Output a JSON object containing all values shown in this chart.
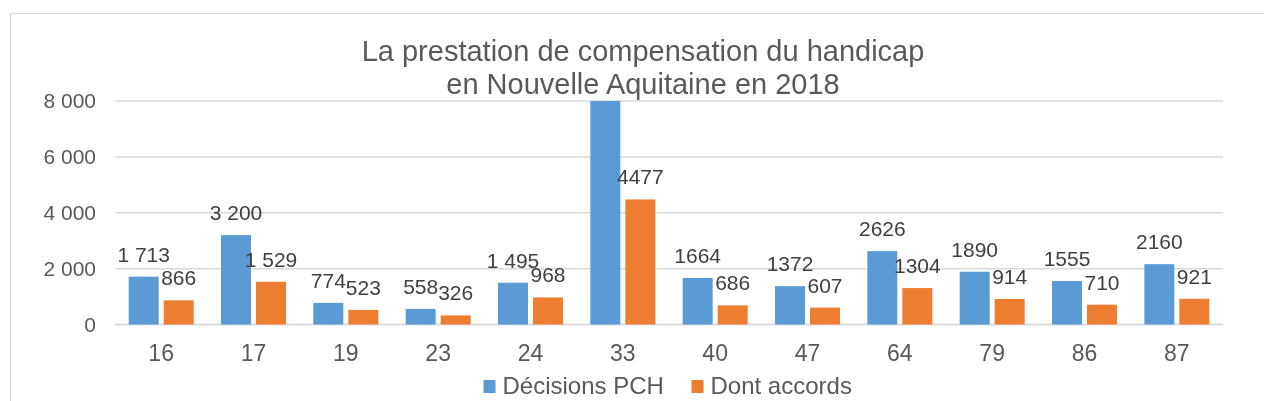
{
  "chart_data": {
    "type": "bar",
    "title": "La prestation de compensation du handicap\nen Nouvelle Aquitaine en 2018",
    "categories": [
      "16",
      "17",
      "19",
      "23",
      "24",
      "33",
      "40",
      "47",
      "64",
      "79",
      "86",
      "87"
    ],
    "series": [
      {
        "name": "Décisions PCH",
        "color": "#5b9bd5",
        "values": [
          1713,
          3200,
          774,
          558,
          1495,
          8000,
          1664,
          1372,
          2626,
          1890,
          1555,
          2160
        ],
        "value_labels": [
          "1 713",
          "3 200",
          "774",
          "558",
          "1 495",
          null,
          "1664",
          "1372",
          "2626",
          "1890",
          "1555",
          "2160"
        ]
      },
      {
        "name": "Dont accords",
        "color": "#ed7d31",
        "values": [
          866,
          1529,
          523,
          326,
          968,
          4477,
          686,
          607,
          1304,
          914,
          710,
          921
        ],
        "value_labels": [
          "866",
          "1 529",
          "523",
          "326",
          "968",
          "4477",
          "686",
          "607",
          "1304",
          "914",
          "710",
          "921"
        ]
      }
    ],
    "ylim": [
      0,
      8000
    ],
    "yticks": [
      0,
      {
        "value": 2000,
        "label": "2 000"
      },
      {
        "value": 4000,
        "label": "4 000"
      },
      {
        "value": 6000,
        "label": "6 000"
      },
      {
        "value": 8000,
        "label": "8 000"
      }
    ],
    "grid": "y",
    "legend": "bottom"
  }
}
